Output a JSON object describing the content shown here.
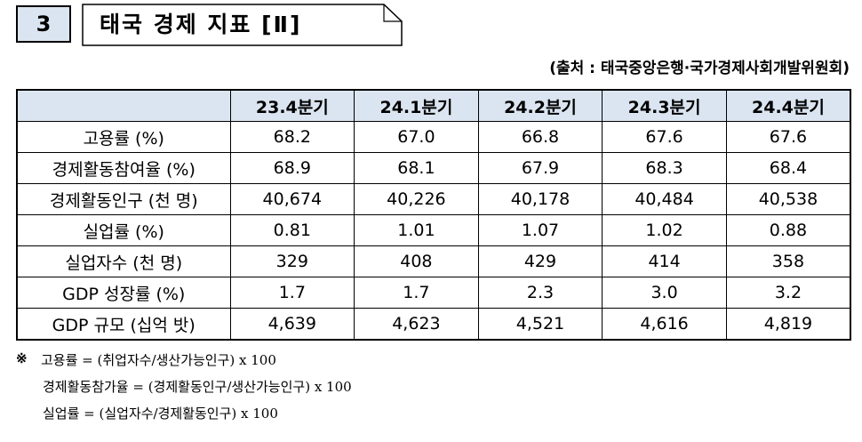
{
  "header": {
    "number": "3",
    "title": "태국 경제 지표 [Ⅱ]"
  },
  "source": "(출처 : 태국중앙은행·국가경제사회개발위원회)",
  "table": {
    "columns": [
      "23.4분기",
      "24.1분기",
      "24.2분기",
      "24.3분기",
      "24.4분기"
    ],
    "rows": [
      [
        "고용률 (%)",
        "68.2",
        "67.0",
        "66.8",
        "67.6",
        "67.6"
      ],
      [
        "경제활동참여율 (%)",
        "68.9",
        "68.1",
        "67.9",
        "68.3",
        "68.4"
      ],
      [
        "경제활동인구 (천 명)",
        "40,674",
        "40,226",
        "40,178",
        "40,484",
        "40,538"
      ],
      [
        "실업률 (%)",
        "0.81",
        "1.01",
        "1.07",
        "1.02",
        "0.88"
      ],
      [
        "실업자수 (천 명)",
        "329",
        "408",
        "429",
        "414",
        "358"
      ],
      [
        "GDP 성장률 (%)",
        "1.7",
        "1.7",
        "2.3",
        "3.0",
        "3.2"
      ],
      [
        "GDP 규모 (십억 밧)",
        "4,639",
        "4,623",
        "4,521",
        "4,616",
        "4,819"
      ]
    ]
  },
  "notes": {
    "mark": "※",
    "lines": [
      "고용률 = (취업자수/생산가능인구) x 100",
      "경제활동참가율 = (경제활동인구/생산가능인구) x 100",
      "실업률 = (실업자수/경제활동인구) x 100"
    ]
  }
}
